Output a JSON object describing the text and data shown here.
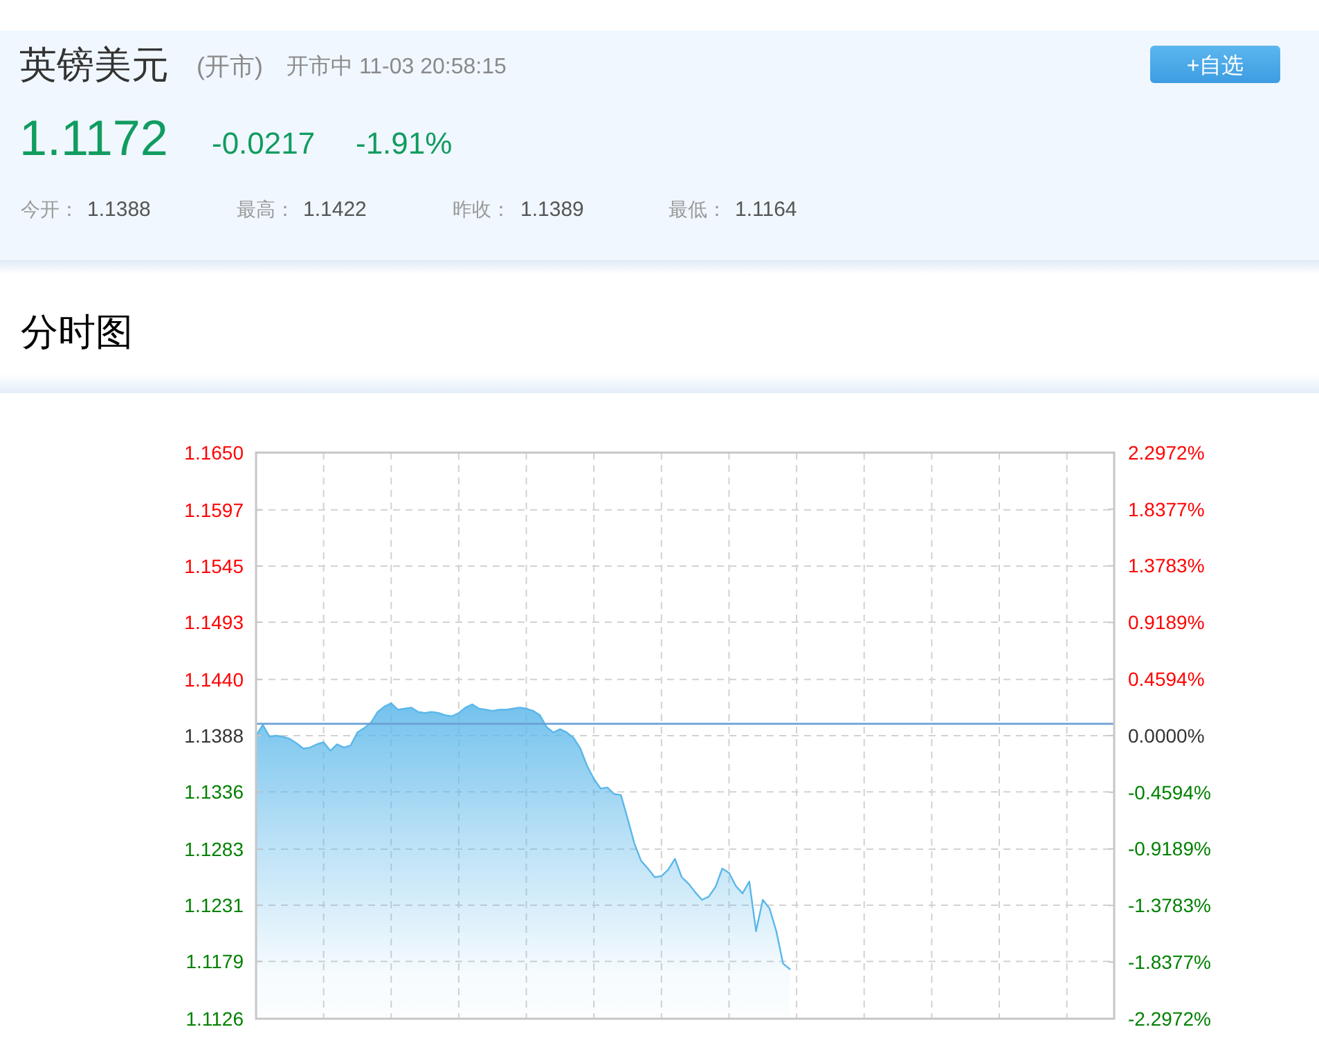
{
  "chart_data": {
    "type": "area",
    "title": "英镑美元",
    "annotations": [
      "(开市)",
      "开市中 11-03 20:58:15",
      "+自选",
      "1.1172",
      "-0.0217",
      "-1.91%",
      "今开：",
      "1.1388",
      "最高：",
      "1.1422",
      "昨收：",
      "1.1389",
      "最低：",
      "1.1164",
      "分时图"
    ],
    "categories": [
      null,
      null,
      null,
      null,
      null,
      null,
      null,
      null,
      null,
      null,
      null,
      null,
      null,
      null,
      null,
      null,
      null,
      null,
      null,
      null,
      null,
      null,
      null,
      null,
      null,
      null,
      null,
      null,
      null,
      null,
      null,
      null,
      null,
      null,
      null,
      null,
      null,
      null,
      null,
      null,
      null,
      null,
      null,
      null,
      null,
      null,
      null,
      null,
      null,
      null,
      null,
      null,
      null,
      null,
      null,
      null,
      null,
      null,
      null,
      null,
      null,
      null,
      null,
      null,
      null,
      null,
      null,
      null,
      null,
      null,
      null,
      null,
      null,
      null,
      null,
      null,
      null,
      null,
      null,
      null
    ],
    "series": [
      {
        "color": "#5ab7ea",
        "values": [
          1.1388,
          1.1398,
          1.1387,
          1.1388,
          1.1387,
          1.1385,
          1.1381,
          1.1376,
          1.1377,
          1.138,
          1.1382,
          1.1374,
          1.138,
          1.1377,
          1.1379,
          1.1391,
          1.1395,
          1.14,
          1.141,
          1.1415,
          1.1418,
          1.1412,
          1.1413,
          1.1414,
          1.141,
          1.1409,
          1.141,
          1.1409,
          1.1407,
          1.1406,
          1.1409,
          1.1414,
          1.1417,
          1.1413,
          1.1412,
          1.1411,
          1.1412,
          1.1412,
          1.1413,
          1.1414,
          1.1413,
          1.1411,
          1.1407,
          1.1396,
          1.1391,
          1.1394,
          1.1391,
          1.1386,
          1.1376,
          1.136,
          1.1348,
          1.1339,
          1.134,
          1.1334,
          1.1333,
          1.1311,
          1.1288,
          1.1272,
          1.1265,
          1.1257,
          1.1258,
          1.1264,
          1.1274,
          1.1257,
          1.1251,
          1.1243,
          1.1236,
          1.1239,
          1.1248,
          1.1265,
          1.1261,
          1.1249,
          1.1242,
          1.1253,
          1.1207,
          1.1236,
          1.1228,
          1.1207,
          1.1177,
          1.1172
        ]
      }
    ],
    "ylim": [
      1.1126,
      1.165
    ],
    "yticks": [
      {
        "value": 1.165,
        "label": "1.1650"
      },
      1.1597,
      1.1545,
      1.1493,
      {
        "value": 1.144,
        "label": "1.1440"
      },
      1.1388,
      1.1336,
      1.1283,
      1.1231,
      1.1179,
      1.1126
    ],
    "y2lim": [
      -2.2972,
      2.2972
    ],
    "y2ticks": [
      {
        "value": 2.2972,
        "label": "2.2972%"
      },
      {
        "value": 1.8377,
        "label": "1.8377%"
      },
      {
        "value": 1.3783,
        "label": "1.3783%"
      },
      {
        "value": 0.9189,
        "label": "0.9189%"
      },
      {
        "value": 0.4594,
        "label": "0.4594%"
      },
      {
        "value": 0,
        "label": "0.0000%"
      },
      {
        "value": -0.4594,
        "label": "-0.4594%"
      },
      {
        "value": -0.9189,
        "label": "-0.9189%"
      },
      {
        "value": -1.3783,
        "label": "-1.3783%"
      },
      {
        "value": -1.8377,
        "label": "-1.8377%"
      },
      {
        "value": -2.2972,
        "label": "-2.2972%"
      }
    ],
    "grid": true,
    "ref_lines": [
      {
        "axis": "y",
        "value": 1.1399,
        "color": "#6a9fd4"
      }
    ]
  }
}
